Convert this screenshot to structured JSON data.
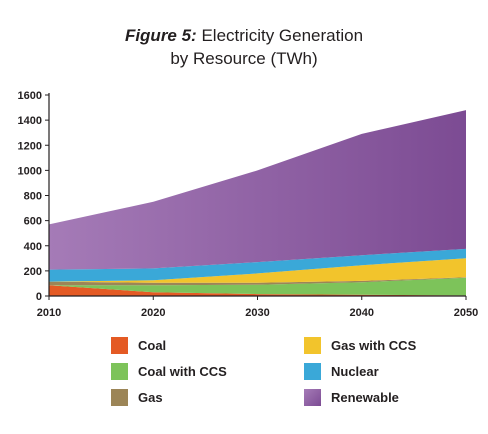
{
  "chart_data": {
    "type": "area",
    "stacked": true,
    "title_lead": "Figure 5:",
    "title_rest": "Electricity Generation",
    "title_line2": "by Resource (TWh)",
    "xlabel": "",
    "ylabel": "",
    "x": [
      2010,
      2020,
      2030,
      2040,
      2050
    ],
    "xlim": [
      2010,
      2050
    ],
    "ylim": [
      0,
      1600
    ],
    "xticks": [
      "2010",
      "2020",
      "2030",
      "2040",
      "2050"
    ],
    "yticks": [
      "0",
      "200",
      "400",
      "600",
      "800",
      "1000",
      "1200",
      "1400",
      "1600"
    ],
    "grid": false,
    "series": [
      {
        "name": "Coal",
        "color": "#e45a24",
        "values": [
          85,
          30,
          15,
          10,
          5
        ]
      },
      {
        "name": "Coal with CCS",
        "color": "#7dc35a",
        "values": [
          0,
          55,
          75,
          100,
          140
        ]
      },
      {
        "name": "Gas",
        "color": "#9c8557",
        "values": [
          30,
          20,
          15,
          10,
          5
        ]
      },
      {
        "name": "Gas with CCS",
        "color": "#f2c42c",
        "values": [
          0,
          20,
          75,
          125,
          150
        ]
      },
      {
        "name": "Nuclear",
        "color": "#3aa8d8",
        "values": [
          95,
          95,
          90,
          80,
          75
        ]
      },
      {
        "name": "Renewable",
        "color": "#8b55a3",
        "values": [
          360,
          530,
          730,
          965,
          1105
        ]
      }
    ],
    "legend_order": [
      "Coal",
      "Gas with CCS",
      "Coal with CCS",
      "Nuclear",
      "Gas",
      "Renewable"
    ]
  }
}
